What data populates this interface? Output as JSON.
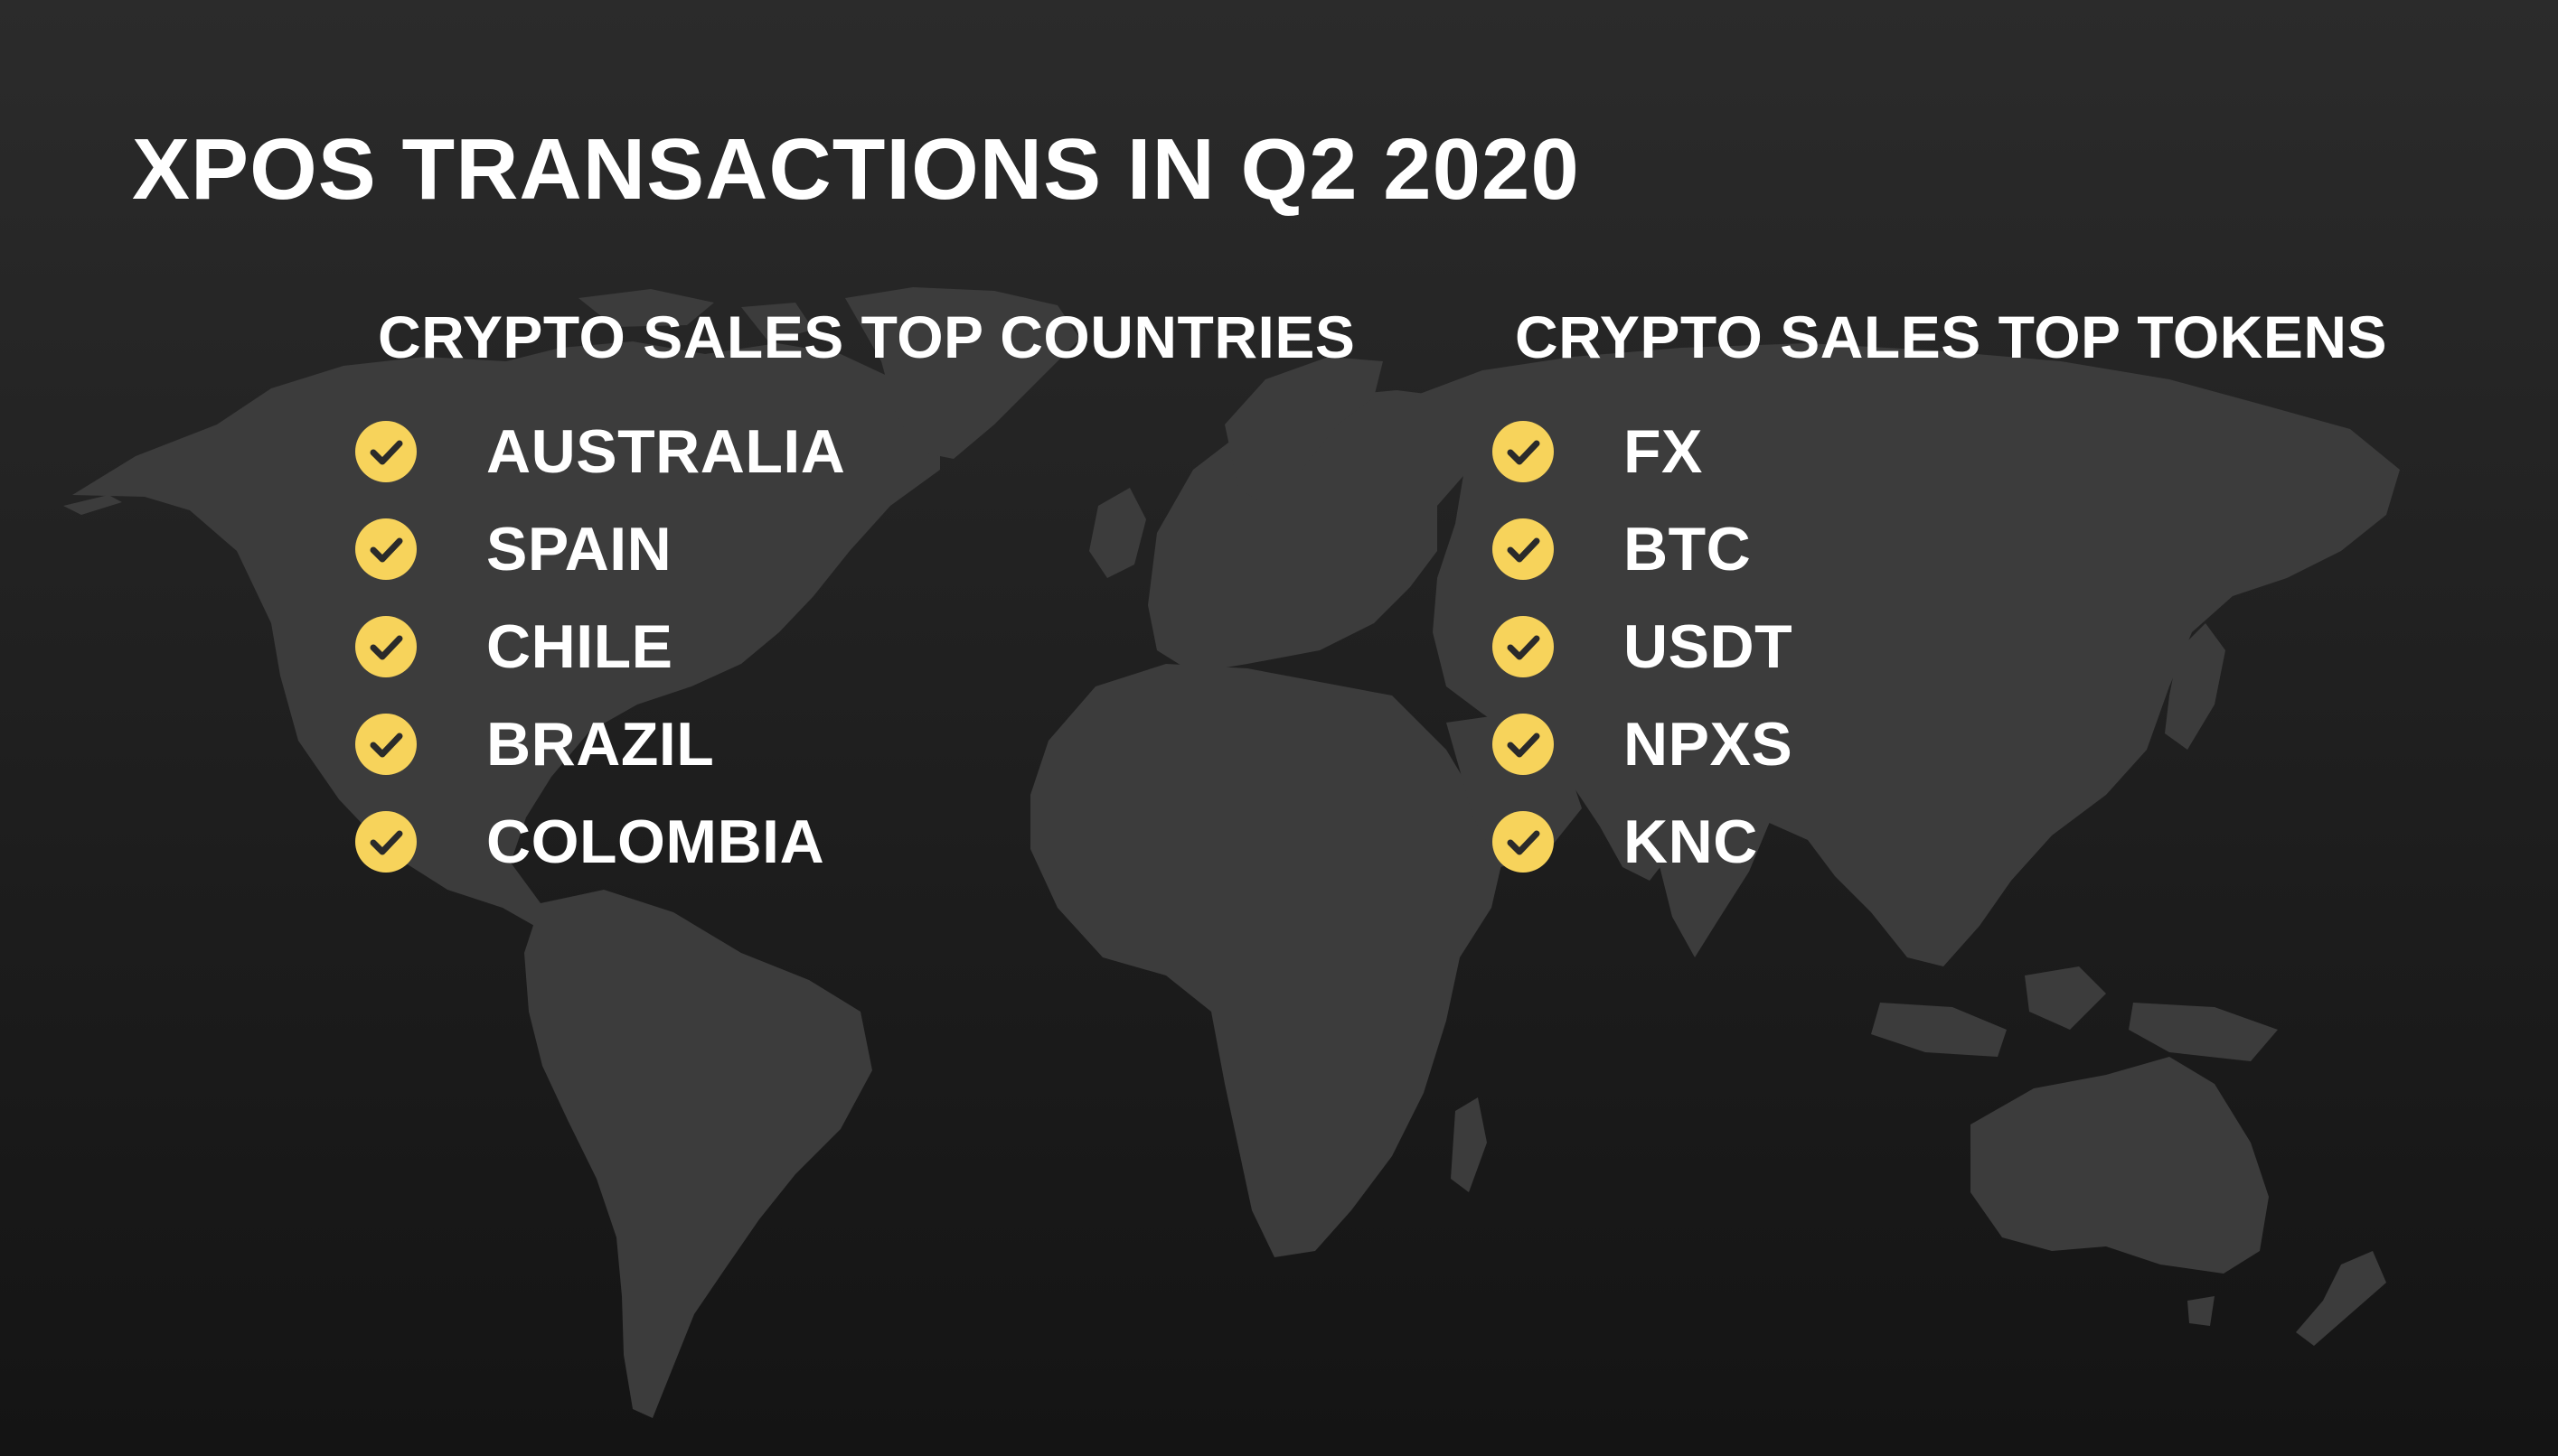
{
  "slide": {
    "title": "XPOS TRANSACTIONS IN Q2 2020",
    "background_color": "#1e1e1e",
    "map_color": "#3c3c3c",
    "accent_color": "#f7d35b"
  },
  "countries": {
    "heading": "CRYPTO SALES TOP COUNTRIES",
    "icon": "check-circle-icon",
    "items": [
      "AUSTRALIA",
      "SPAIN",
      "CHILE",
      "BRAZIL",
      "COLOMBIA"
    ]
  },
  "tokens": {
    "heading": "CRYPTO SALES TOP TOKENS",
    "icon": "check-circle-icon",
    "items": [
      "FX",
      "BTC",
      "USDT",
      "NPXS",
      "KNC"
    ]
  }
}
